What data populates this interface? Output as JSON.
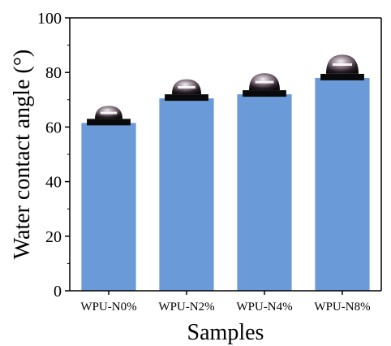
{
  "chart_data": {
    "type": "bar",
    "title": "",
    "xlabel": "Samples",
    "ylabel": "Water contact angle (°)",
    "categories": [
      "WPU-N0%",
      "WPU-N2%",
      "WPU-N4%",
      "WPU-N8%"
    ],
    "values": [
      61.5,
      70.5,
      72.0,
      78.0
    ],
    "ylim": [
      0,
      100
    ],
    "yticks": [
      "0",
      "20",
      "40",
      "60",
      "80",
      "100"
    ],
    "grid": false,
    "legend": "none",
    "bar_color": "#6a9ad8",
    "inset_images": [
      "droplet-photo",
      "droplet-photo",
      "droplet-photo",
      "droplet-photo"
    ]
  }
}
